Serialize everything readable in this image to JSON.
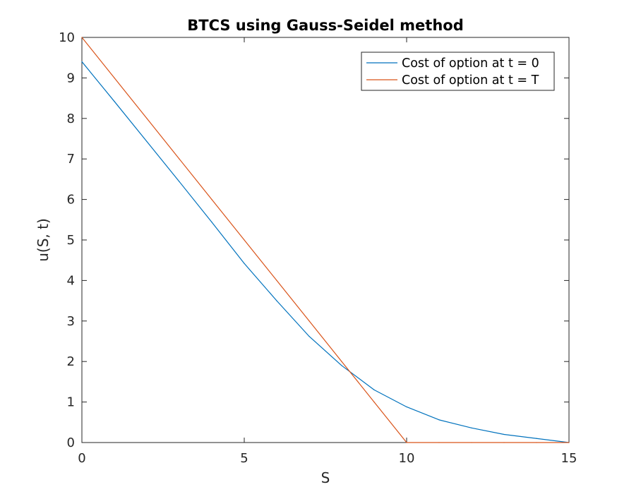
{
  "chart_data": {
    "type": "line",
    "title": "BTCS using Gauss-Seidel method",
    "xlabel": "S",
    "ylabel": "u(S, t)",
    "xlim": [
      0,
      15
    ],
    "ylim": [
      0,
      10
    ],
    "xticks": [
      0,
      5,
      10,
      15
    ],
    "yticks": [
      0,
      1,
      2,
      3,
      4,
      5,
      6,
      7,
      8,
      9,
      10
    ],
    "grid": false,
    "legend_position": "top-right",
    "series": [
      {
        "name": "Cost of option at t = 0",
        "color": "#0072BD",
        "x": [
          0,
          1,
          2,
          3,
          4,
          5,
          6,
          7,
          8,
          9,
          10,
          11,
          12,
          13,
          14,
          15
        ],
        "y": [
          9.4,
          8.42,
          7.43,
          6.44,
          5.44,
          4.42,
          3.5,
          2.62,
          1.9,
          1.3,
          0.88,
          0.56,
          0.36,
          0.2,
          0.1,
          0
        ]
      },
      {
        "name": "Cost of option at t = T",
        "color": "#D95319",
        "x": [
          0,
          1,
          2,
          3,
          4,
          5,
          6,
          7,
          8,
          9,
          10,
          11,
          12,
          13,
          14,
          15
        ],
        "y": [
          10,
          9,
          8,
          7,
          6,
          5,
          4,
          3,
          2,
          1,
          0,
          0,
          0,
          0,
          0,
          0
        ]
      }
    ]
  }
}
